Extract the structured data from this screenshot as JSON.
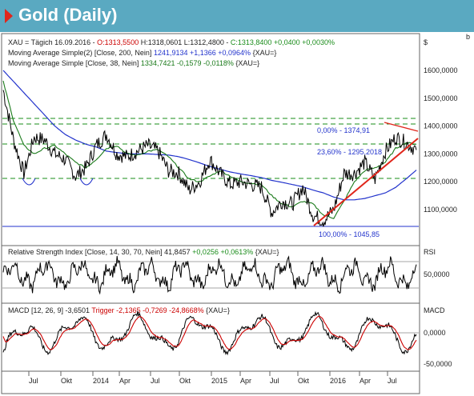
{
  "header": {
    "title": "Gold (Daily)",
    "accent": "#e0261b",
    "bar_color": "#5aa9c1"
  },
  "corner_label": "b",
  "price_panel": {
    "symbol_line": {
      "prefix": "XAU = Tägich  16.09.2016 - ",
      "open": "O:1313,5500",
      "high": "H:1318,0601",
      "low": "L:1312,4800 - ",
      "close": "C:1313,8400 +0,0400 +0,0030%"
    },
    "ma200_line": {
      "label": "Moving Average Simple(2) [Close, 200, Nein] ",
      "value": "1241,9134 +1,1366 +0,0964%",
      "suffix": " {XAU=}"
    },
    "ma38_line": {
      "label": "Moving Average Simple [Close, 38, Nein] ",
      "value": "1334,7421 -0,1579 -0,0118%",
      "suffix": " {XAU=}"
    },
    "unit": "$",
    "fib_labels": {
      "top": "0,00% - 1374,91",
      "mid": "23,60% - 1295,2018",
      "bottom": "100,00% - 1045,85"
    }
  },
  "rsi_panel": {
    "label": "Relative Strength Index [Close, 14, 30, 70, Nein] ",
    "value": "41,8457",
    "change": " +0,0256 +0,0613%",
    "suffix": " {XAU=}",
    "tag": "RSI",
    "tick": "50,0000"
  },
  "macd_panel": {
    "label": "MACD [12, 26, 9] -3,6501 ",
    "trigger": "Trigger -2,1365 -0,7269 -24,8668%",
    "suffix": " {XAU=}",
    "tag": "MACD",
    "ticks": [
      "0,0000",
      "-50,0000"
    ]
  },
  "x_axis": [
    "Jul",
    "Okt",
    "2014",
    "Apr",
    "Jul",
    "Okt",
    "2015",
    "Apr",
    "Jul",
    "Okt",
    "2016",
    "Apr",
    "Jul"
  ],
  "chart_data": {
    "type": "line",
    "title": "Gold (Daily)",
    "series": [
      {
        "name": "XAU=",
        "color": "#000000",
        "x": [
          "2013-05",
          "2013-06",
          "2013-07",
          "2013-08",
          "2013-09",
          "2013-10",
          "2013-11",
          "2013-12",
          "2014-01",
          "2014-02",
          "2014-03",
          "2014-04",
          "2014-05",
          "2014-06",
          "2014-07",
          "2014-08",
          "2014-09",
          "2014-10",
          "2014-11",
          "2014-12",
          "2015-01",
          "2015-02",
          "2015-03",
          "2015-04",
          "2015-05",
          "2015-06",
          "2015-07",
          "2015-08",
          "2015-09",
          "2015-10",
          "2015-11",
          "2015-12",
          "2016-01",
          "2016-02",
          "2016-03",
          "2016-04",
          "2016-05",
          "2016-06",
          "2016-07",
          "2016-08",
          "2016-09"
        ],
        "values": [
          1530,
          1350,
          1230,
          1360,
          1350,
          1300,
          1280,
          1220,
          1250,
          1330,
          1370,
          1300,
          1290,
          1310,
          1330,
          1310,
          1240,
          1230,
          1170,
          1200,
          1280,
          1230,
          1190,
          1200,
          1190,
          1180,
          1090,
          1130,
          1120,
          1180,
          1080,
          1060,
          1100,
          1230,
          1230,
          1270,
          1210,
          1310,
          1360,
          1340,
          1314
        ]
      },
      {
        "name": "Moving Average Simple(2) [Close, 200, Nein]",
        "color": "#2233cc",
        "values": [
          1600,
          1560,
          1520,
          1480,
          1440,
          1400,
          1370,
          1350,
          1335,
          1325,
          1310,
          1305,
          1300,
          1300,
          1300,
          1298,
          1296,
          1290,
          1280,
          1268,
          1255,
          1245,
          1235,
          1228,
          1222,
          1215,
          1205,
          1198,
          1190,
          1182,
          1170,
          1160,
          1145,
          1135,
          1135,
          1140,
          1150,
          1160,
          1180,
          1210,
          1242
        ]
      },
      {
        "name": "Moving Average Simple [Close, 38, Nein]",
        "color": "#1a7a1a",
        "values": [
          1560,
          1420,
          1330,
          1300,
          1320,
          1330,
          1300,
          1270,
          1250,
          1280,
          1320,
          1330,
          1300,
          1295,
          1310,
          1315,
          1290,
          1250,
          1210,
          1200,
          1220,
          1240,
          1220,
          1200,
          1195,
          1190,
          1150,
          1120,
          1110,
          1130,
          1120,
          1080,
          1070,
          1130,
          1200,
          1240,
          1250,
          1270,
          1320,
          1340,
          1335
        ]
      }
    ],
    "ylim": [
      1000,
      1700
    ],
    "yticks": [
      "1600,0000",
      "1500,0000",
      "1400,0000",
      "1300,0000",
      "1200,0000",
      "1100,0000"
    ],
    "fibonacci": [
      {
        "label": "0,00%",
        "value": 1374.91
      },
      {
        "label": "23,60%",
        "value": 1295.2018
      },
      {
        "label": "100,00%",
        "value": 1045.85
      }
    ],
    "rsi": {
      "ylim": [
        0,
        100
      ],
      "bands": [
        30,
        70
      ],
      "last": 41.8457
    },
    "macd": {
      "ylim": [
        -80,
        40
      ],
      "last": -3.6501,
      "trigger_last": -2.1365
    }
  }
}
